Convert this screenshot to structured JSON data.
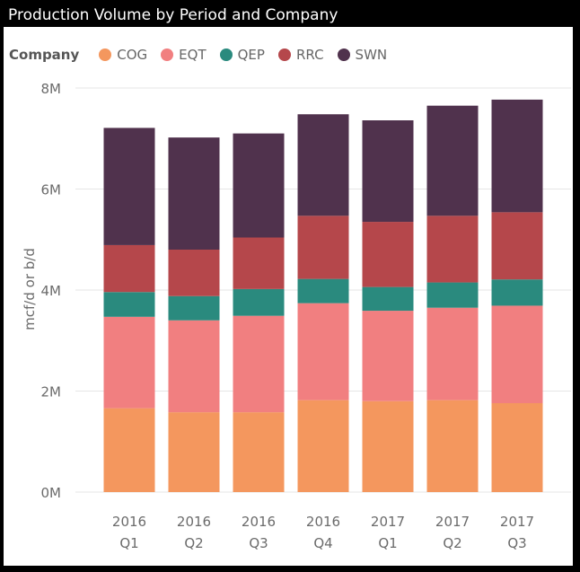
{
  "title": "Production Volume by Period and Company",
  "legend": {
    "title": "Company",
    "items": [
      {
        "name": "COG",
        "color": "#F4975E"
      },
      {
        "name": "EQT",
        "color": "#F17F80"
      },
      {
        "name": "QEP",
        "color": "#2A8A7E"
      },
      {
        "name": "RRC",
        "color": "#B5474B"
      },
      {
        "name": "SWN",
        "color": "#50324D"
      }
    ]
  },
  "chart_data": {
    "type": "bar",
    "stacked": true,
    "title": "Production Volume by Period and Company",
    "xlabel": "",
    "ylabel": "mcf/d or b/d",
    "ylim": [
      0,
      8000000
    ],
    "yticks": [
      0,
      2000000,
      4000000,
      6000000,
      8000000
    ],
    "ytick_labels": [
      "0M",
      "2M",
      "4M",
      "6M",
      "8M"
    ],
    "grid": true,
    "legend_position": "top-left",
    "categories": [
      [
        "2016",
        "Q1"
      ],
      [
        "2016",
        "Q2"
      ],
      [
        "2016",
        "Q3"
      ],
      [
        "2016",
        "Q4"
      ],
      [
        "2017",
        "Q1"
      ],
      [
        "2017",
        "Q2"
      ],
      [
        "2017",
        "Q3"
      ]
    ],
    "series": [
      {
        "name": "COG",
        "color": "#F4975E",
        "values": [
          1660000,
          1580000,
          1580000,
          1820000,
          1800000,
          1820000,
          1760000
        ]
      },
      {
        "name": "EQT",
        "color": "#F17F80",
        "values": [
          1810000,
          1820000,
          1910000,
          1920000,
          1790000,
          1830000,
          1930000
        ]
      },
      {
        "name": "QEP",
        "color": "#2A8A7E",
        "values": [
          490000,
          480000,
          530000,
          480000,
          470000,
          500000,
          520000
        ]
      },
      {
        "name": "RRC",
        "color": "#B5474B",
        "values": [
          930000,
          920000,
          1020000,
          1250000,
          1290000,
          1320000,
          1330000
        ]
      },
      {
        "name": "SWN",
        "color": "#50324D",
        "values": [
          2320000,
          2220000,
          2060000,
          2010000,
          2010000,
          2180000,
          2230000
        ]
      }
    ]
  }
}
